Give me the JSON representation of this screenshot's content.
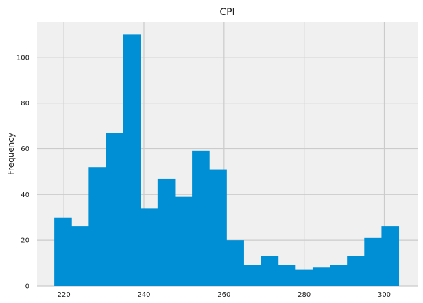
{
  "chart_data": {
    "type": "bar",
    "title": "CPI",
    "xlabel": "",
    "ylabel": "Frequency",
    "grid": true,
    "colors": {
      "bar": "#008fd5",
      "plot_background": "#f0f0f0",
      "grid": "#cbcbcb",
      "figure_background": "#ffffff"
    },
    "xlim": [
      213.3,
      308.3
    ],
    "ylim": [
      0,
      115.5
    ],
    "xticks": [
      220,
      240,
      260,
      280,
      300
    ],
    "yticks": [
      0,
      20,
      40,
      60,
      80,
      100
    ],
    "bins": [
      {
        "x0": 217.6,
        "x1": 221.9,
        "count": 30
      },
      {
        "x0": 221.9,
        "x1": 226.2,
        "count": 26
      },
      {
        "x0": 226.2,
        "x1": 230.5,
        "count": 52
      },
      {
        "x0": 230.5,
        "x1": 234.8,
        "count": 67
      },
      {
        "x0": 234.8,
        "x1": 239.1,
        "count": 110
      },
      {
        "x0": 239.1,
        "x1": 243.4,
        "count": 34
      },
      {
        "x0": 243.4,
        "x1": 247.7,
        "count": 47
      },
      {
        "x0": 247.7,
        "x1": 252.0,
        "count": 39
      },
      {
        "x0": 252.0,
        "x1": 256.3,
        "count": 59
      },
      {
        "x0": 256.3,
        "x1": 260.6,
        "count": 51
      },
      {
        "x0": 260.6,
        "x1": 264.9,
        "count": 20
      },
      {
        "x0": 264.9,
        "x1": 269.2,
        "count": 9
      },
      {
        "x0": 269.2,
        "x1": 273.5,
        "count": 13
      },
      {
        "x0": 273.5,
        "x1": 277.8,
        "count": 9
      },
      {
        "x0": 277.8,
        "x1": 282.1,
        "count": 7
      },
      {
        "x0": 282.1,
        "x1": 286.4,
        "count": 8
      },
      {
        "x0": 286.4,
        "x1": 290.7,
        "count": 9
      },
      {
        "x0": 290.7,
        "x1": 295.0,
        "count": 13
      },
      {
        "x0": 295.0,
        "x1": 299.3,
        "count": 21
      },
      {
        "x0": 299.3,
        "x1": 303.6,
        "count": 26
      }
    ]
  }
}
